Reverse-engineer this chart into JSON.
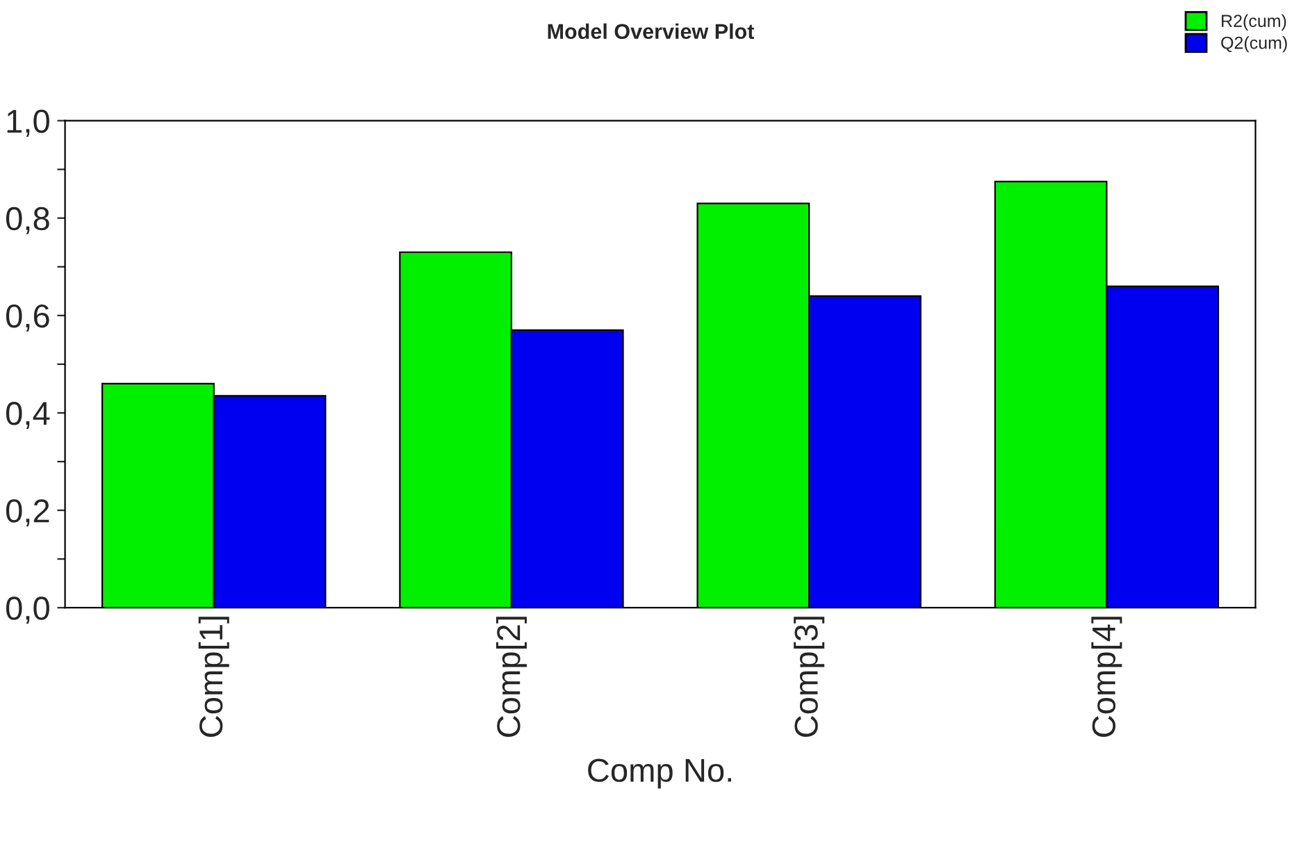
{
  "chart_data": {
    "type": "bar",
    "title": "Model Overview Plot",
    "xlabel": "Comp No.",
    "categories": [
      "Comp[1]",
      "Comp[2]",
      "Comp[3]",
      "Comp[4]"
    ],
    "series": [
      {
        "name": "R2(cum)",
        "color": "#00f000",
        "values": [
          0.46,
          0.73,
          0.83,
          0.875
        ]
      },
      {
        "name": "Q2(cum)",
        "color": "#0000f0",
        "values": [
          0.435,
          0.57,
          0.64,
          0.66
        ]
      }
    ],
    "ylim": [
      0,
      1
    ],
    "yticks": [
      {
        "value": 0,
        "label": "0,0"
      },
      {
        "value": 0.1,
        "label": null
      },
      {
        "value": 0.2,
        "label": "0,2"
      },
      {
        "value": 0.3,
        "label": null
      },
      {
        "value": 0.4,
        "label": "0,4"
      },
      {
        "value": 0.5,
        "label": null
      },
      {
        "value": 0.6,
        "label": "0,6"
      },
      {
        "value": 0.7,
        "label": null
      },
      {
        "value": 0.8,
        "label": "0,8"
      },
      {
        "value": 0.9,
        "label": null
      },
      {
        "value": 1,
        "label": "1,0"
      }
    ],
    "grid": false,
    "legend": "top right"
  }
}
